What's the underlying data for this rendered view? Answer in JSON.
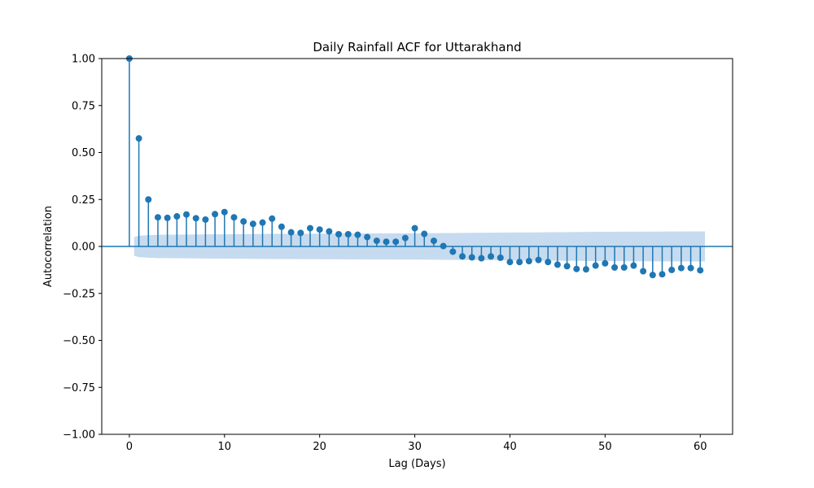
{
  "chart_data": {
    "type": "stem",
    "title": "Daily Rainfall ACF for Uttarakhand",
    "xlabel": "Lag (Days)",
    "ylabel": "Autocorrelation",
    "xlim": [
      -2.9,
      63.4
    ],
    "ylim": [
      -1.0,
      1.0
    ],
    "x_ticks": [
      0,
      10,
      20,
      30,
      40,
      50,
      60
    ],
    "y_ticks": [
      -1.0,
      -0.75,
      -0.5,
      -0.25,
      0.0,
      0.25,
      0.5,
      0.75,
      1.0
    ],
    "x_tick_labels": [
      "0",
      "10",
      "20",
      "30",
      "40",
      "50",
      "60"
    ],
    "y_tick_labels": [
      "−1.00",
      "−0.75",
      "−0.50",
      "−0.25",
      "0.00",
      "0.25",
      "0.50",
      "0.75",
      "1.00"
    ],
    "grid": false,
    "legend": "none",
    "lags": [
      0,
      1,
      2,
      3,
      4,
      5,
      6,
      7,
      8,
      9,
      10,
      11,
      12,
      13,
      14,
      15,
      16,
      17,
      18,
      19,
      20,
      21,
      22,
      23,
      24,
      25,
      26,
      27,
      28,
      29,
      30,
      31,
      32,
      33,
      34,
      35,
      36,
      37,
      38,
      39,
      40,
      41,
      42,
      43,
      44,
      45,
      46,
      47,
      48,
      49,
      50,
      51,
      52,
      53,
      54,
      55,
      56,
      57,
      58,
      59,
      60
    ],
    "values": [
      1.0,
      0.575,
      0.25,
      0.155,
      0.152,
      0.16,
      0.17,
      0.15,
      0.143,
      0.172,
      0.183,
      0.155,
      0.133,
      0.12,
      0.127,
      0.148,
      0.105,
      0.075,
      0.072,
      0.097,
      0.09,
      0.08,
      0.065,
      0.065,
      0.062,
      0.05,
      0.03,
      0.025,
      0.025,
      0.045,
      0.097,
      0.067,
      0.03,
      0.002,
      -0.028,
      -0.053,
      -0.058,
      -0.063,
      -0.053,
      -0.06,
      -0.083,
      -0.083,
      -0.078,
      -0.072,
      -0.083,
      -0.097,
      -0.105,
      -0.12,
      -0.122,
      -0.102,
      -0.09,
      -0.112,
      -0.112,
      -0.102,
      -0.132,
      -0.152,
      -0.148,
      -0.125,
      -0.115,
      -0.115,
      -0.127
    ],
    "confidence_band": {
      "lags": [
        0.5,
        1,
        2,
        3,
        5,
        10,
        15,
        20,
        25,
        30,
        35,
        40,
        45,
        50,
        55,
        60,
        60.5
      ],
      "upper": [
        0.05,
        0.057,
        0.06,
        0.062,
        0.063,
        0.065,
        0.067,
        0.068,
        0.069,
        0.07,
        0.072,
        0.074,
        0.076,
        0.078,
        0.079,
        0.08,
        0.08
      ],
      "lower": [
        -0.05,
        -0.057,
        -0.06,
        -0.062,
        -0.063,
        -0.065,
        -0.067,
        -0.068,
        -0.069,
        -0.07,
        -0.072,
        -0.074,
        -0.076,
        -0.078,
        -0.079,
        -0.08,
        -0.08
      ]
    },
    "colors": {
      "stem": "#1f77b4",
      "marker": "#1f77b4",
      "band": "#c6dbef",
      "axis": "#000000"
    }
  }
}
